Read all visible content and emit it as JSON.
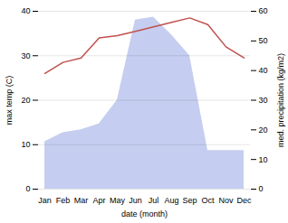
{
  "chart_data": {
    "type": "line",
    "xlabel": "date (month)",
    "ylabel": "max temp (C)",
    "y2label": "med. precipitation (kg/m2)",
    "categories": [
      "Jan",
      "Feb",
      "Mar",
      "Apr",
      "May",
      "Jun",
      "Jul",
      "Aug",
      "Sep",
      "Oct",
      "Nov",
      "Dec"
    ],
    "series": [
      {
        "type": "area",
        "color": "#c5cef0",
        "axis": "y2",
        "values": [
          16,
          19,
          20,
          22,
          30,
          57,
          58,
          52,
          45,
          13,
          13,
          13
        ]
      },
      {
        "type": "line",
        "color": "#c0504d",
        "values": [
          26,
          28.5,
          29.5,
          34,
          34.5,
          35.5,
          36.5,
          37.5,
          38.5,
          37,
          32,
          29.5
        ]
      }
    ],
    "ylim": [
      0,
      40
    ],
    "yticks": [
      0,
      10,
      20,
      30,
      40
    ],
    "y2lim": [
      0,
      60
    ],
    "y2ticks": [
      0,
      10,
      20,
      30,
      40,
      50,
      60
    ],
    "grid": true
  }
}
